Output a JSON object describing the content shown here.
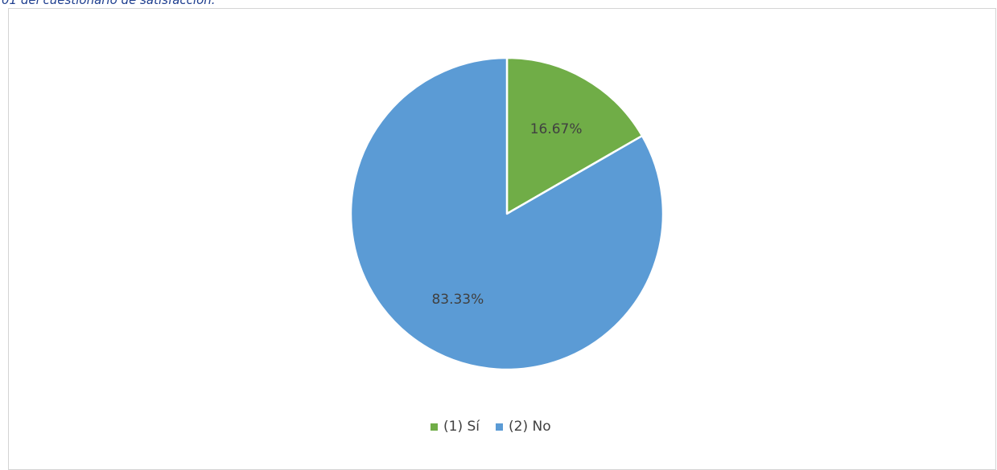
{
  "caption": "01 del cuestionario de satisfacción.",
  "colors": {
    "si": "#70ad47",
    "no": "#5b9bd5"
  },
  "chart_data": {
    "type": "pie",
    "categories": [
      "(1) Sí",
      "(2) No"
    ],
    "values": [
      16.67,
      83.33
    ],
    "data_labels": [
      "16.67%",
      "83.33%"
    ],
    "start_angle_deg": 0,
    "direction": "clockwise",
    "legend_position": "bottom"
  }
}
